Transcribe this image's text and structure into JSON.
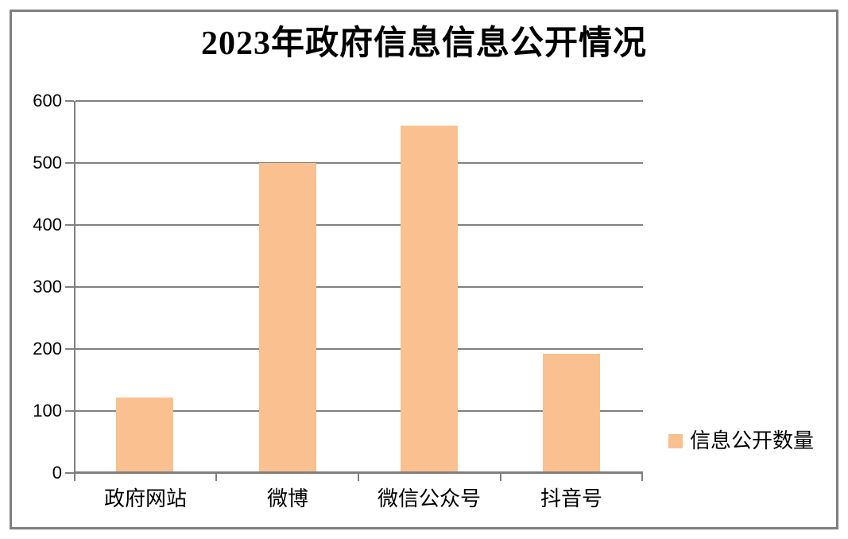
{
  "chart_data": {
    "type": "bar",
    "title": "2023年政府信息信息公开情况",
    "categories": [
      "政府网站",
      "微博",
      "微信公众号",
      "抖音号"
    ],
    "values": [
      120,
      500,
      560,
      190
    ],
    "series": [
      {
        "name": "信息公开数量",
        "values": [
          120,
          500,
          560,
          190
        ]
      }
    ],
    "legend": {
      "label": "信息公开数量",
      "position": "right",
      "marker": "square-icon"
    },
    "xlabel": "",
    "ylabel": "",
    "ylim": [
      0,
      600
    ],
    "ytick_step": 100,
    "yticks": [
      "600",
      "500",
      "400",
      "300",
      "200",
      "100",
      "0"
    ],
    "grid": true,
    "bar_color": "#FAC090",
    "axis_color": "#808080",
    "frame_color": "#808080",
    "text_color": "#000000",
    "background_color": "#FFFFFF"
  }
}
